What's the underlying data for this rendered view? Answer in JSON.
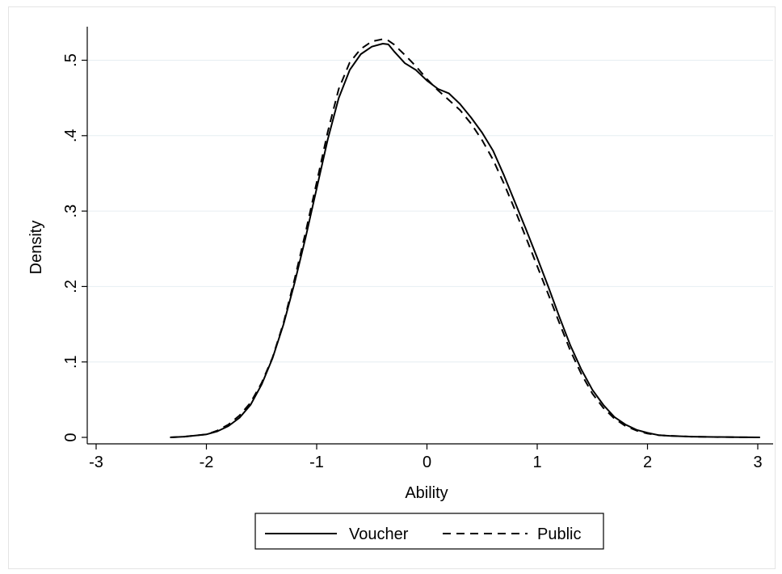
{
  "chart_data": {
    "type": "line",
    "title": "",
    "xlabel": "Ability",
    "ylabel": "Density",
    "xlim": [
      -3,
      3
    ],
    "ylim": [
      0,
      0.5
    ],
    "x_ticks": [
      -3,
      -2,
      -1,
      0,
      1,
      2,
      3
    ],
    "x_tick_labels": [
      "-3",
      "-2",
      "-1",
      "0",
      "1",
      "2",
      "3"
    ],
    "y_ticks": [
      0,
      0.1,
      0.2,
      0.3,
      0.4,
      0.5
    ],
    "y_tick_labels": [
      "0",
      ".1",
      ".2",
      ".3",
      ".4",
      ".5"
    ],
    "grid": "horizontal",
    "legend_position": "bottom",
    "series": [
      {
        "name": "Voucher",
        "style": "solid",
        "color": "#000000",
        "x": [
          -2.33,
          -2.2,
          -2.0,
          -1.9,
          -1.8,
          -1.7,
          -1.6,
          -1.5,
          -1.4,
          -1.3,
          -1.2,
          -1.1,
          -1.0,
          -0.9,
          -0.8,
          -0.7,
          -0.6,
          -0.5,
          -0.4,
          -0.35,
          -0.3,
          -0.2,
          -0.1,
          0.0,
          0.1,
          0.2,
          0.3,
          0.4,
          0.5,
          0.6,
          0.7,
          0.8,
          0.9,
          1.0,
          1.1,
          1.2,
          1.3,
          1.4,
          1.5,
          1.6,
          1.7,
          1.8,
          1.9,
          2.0,
          2.1,
          2.2,
          2.4,
          2.6,
          2.8,
          3.02
        ],
        "y": [
          0.0,
          0.001,
          0.004,
          0.008,
          0.015,
          0.026,
          0.043,
          0.07,
          0.105,
          0.15,
          0.205,
          0.265,
          0.33,
          0.395,
          0.45,
          0.487,
          0.508,
          0.518,
          0.522,
          0.521,
          0.512,
          0.496,
          0.487,
          0.473,
          0.462,
          0.456,
          0.442,
          0.424,
          0.404,
          0.38,
          0.347,
          0.311,
          0.275,
          0.238,
          0.2,
          0.16,
          0.122,
          0.09,
          0.063,
          0.043,
          0.027,
          0.017,
          0.01,
          0.006,
          0.003,
          0.002,
          0.001,
          0.0005,
          0.0002,
          0.0
        ]
      },
      {
        "name": "Public",
        "style": "dashed",
        "color": "#000000",
        "x": [
          -2.33,
          -2.2,
          -2.0,
          -1.9,
          -1.8,
          -1.7,
          -1.6,
          -1.5,
          -1.4,
          -1.3,
          -1.2,
          -1.1,
          -1.0,
          -0.9,
          -0.8,
          -0.7,
          -0.6,
          -0.5,
          -0.4,
          -0.35,
          -0.3,
          -0.2,
          -0.1,
          0.0,
          0.1,
          0.2,
          0.3,
          0.4,
          0.5,
          0.6,
          0.7,
          0.8,
          0.9,
          1.0,
          1.1,
          1.2,
          1.3,
          1.4,
          1.5,
          1.6,
          1.7,
          1.8,
          1.9,
          2.0,
          2.1,
          2.2,
          2.4,
          2.6,
          2.8,
          3.02
        ],
        "y": [
          0.0,
          0.001,
          0.004,
          0.009,
          0.017,
          0.029,
          0.046,
          0.072,
          0.106,
          0.152,
          0.21,
          0.272,
          0.338,
          0.405,
          0.462,
          0.497,
          0.515,
          0.525,
          0.528,
          0.526,
          0.521,
          0.507,
          0.492,
          0.475,
          0.46,
          0.447,
          0.434,
          0.416,
          0.394,
          0.368,
          0.336,
          0.301,
          0.264,
          0.227,
          0.19,
          0.152,
          0.115,
          0.084,
          0.058,
          0.039,
          0.025,
          0.015,
          0.009,
          0.005,
          0.003,
          0.002,
          0.001,
          0.0005,
          0.0002,
          0.0
        ]
      }
    ]
  }
}
